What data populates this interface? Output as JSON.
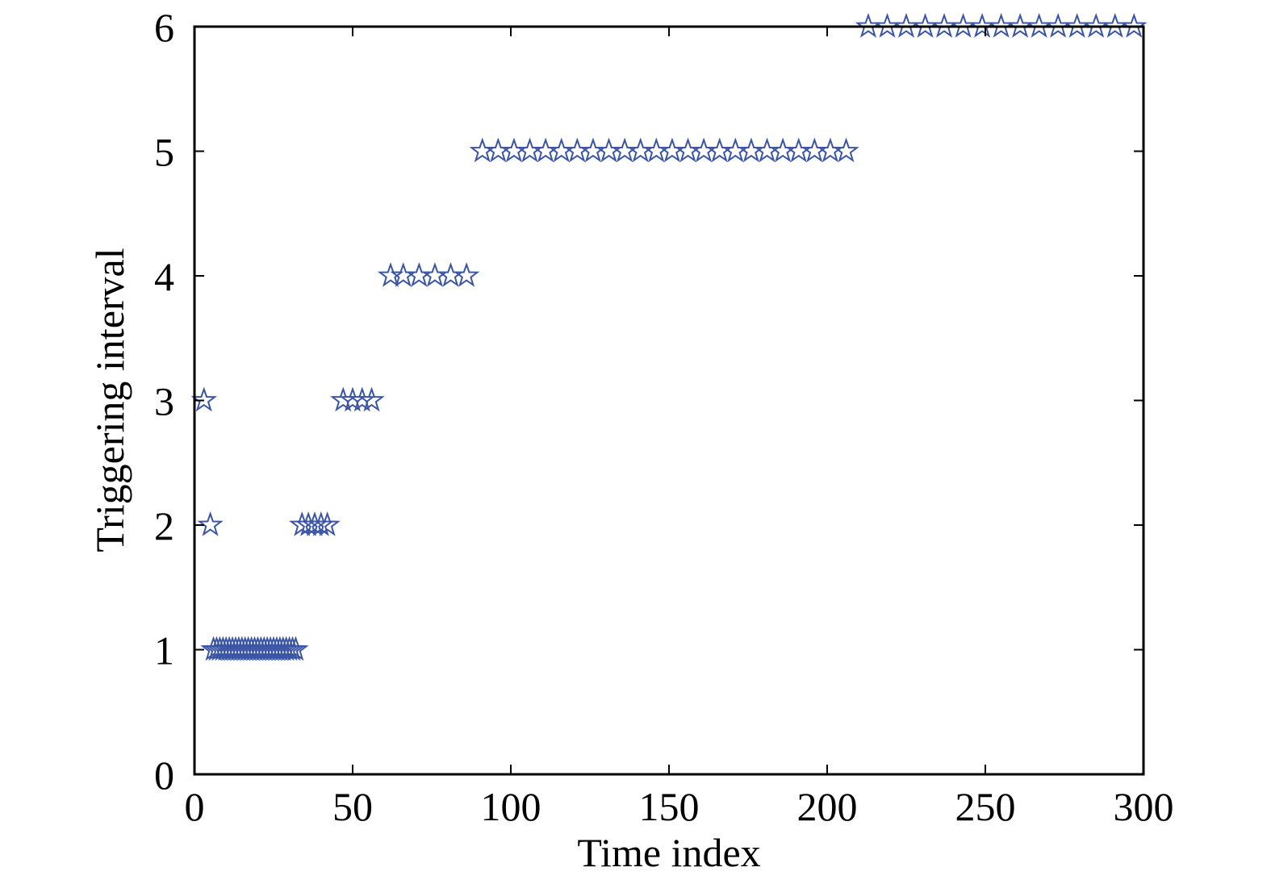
{
  "chart_data": {
    "type": "scatter",
    "title": "",
    "xlabel": "Time index",
    "ylabel": "Triggering interval",
    "xlim": [
      0,
      300
    ],
    "ylim": [
      0,
      6
    ],
    "xticks": [
      0,
      50,
      100,
      150,
      200,
      250,
      300
    ],
    "yticks": [
      0,
      1,
      2,
      3,
      4,
      5,
      6
    ],
    "xtick_labels": [
      "0",
      "50",
      "100",
      "150",
      "200",
      "250",
      "300"
    ],
    "ytick_labels": [
      "0",
      "1",
      "2",
      "3",
      "4",
      "5",
      "6"
    ],
    "grid": false,
    "marker": "pentagram",
    "marker_color": "#3a55a5",
    "series": [
      {
        "x": [
          3,
          5,
          6,
          7,
          8,
          9,
          10,
          11,
          12,
          13,
          14,
          15,
          16,
          17,
          18,
          19,
          20,
          21,
          22,
          23,
          24,
          25,
          26,
          27,
          28,
          29,
          30,
          31,
          32,
          34,
          36,
          38,
          40,
          42,
          47,
          50,
          53,
          56,
          62,
          66,
          71,
          76,
          81,
          86,
          91,
          96,
          101,
          106,
          111,
          116,
          121,
          126,
          131,
          136,
          141,
          146,
          151,
          156,
          161,
          166,
          171,
          176,
          181,
          186,
          191,
          196,
          201,
          206,
          213,
          219,
          225,
          231,
          237,
          243,
          249,
          255,
          261,
          267,
          273,
          279,
          285,
          291,
          297
        ],
        "y": [
          3,
          2,
          1,
          1,
          1,
          1,
          1,
          1,
          1,
          1,
          1,
          1,
          1,
          1,
          1,
          1,
          1,
          1,
          1,
          1,
          1,
          1,
          1,
          1,
          1,
          1,
          1,
          1,
          1,
          2,
          2,
          2,
          2,
          2,
          3,
          3,
          3,
          3,
          4,
          4,
          4,
          4,
          4,
          4,
          5,
          5,
          5,
          5,
          5,
          5,
          5,
          5,
          5,
          5,
          5,
          5,
          5,
          5,
          5,
          5,
          5,
          5,
          5,
          5,
          5,
          5,
          5,
          5,
          6,
          6,
          6,
          6,
          6,
          6,
          6,
          6,
          6,
          6,
          6,
          6,
          6,
          6,
          6
        ]
      }
    ]
  }
}
